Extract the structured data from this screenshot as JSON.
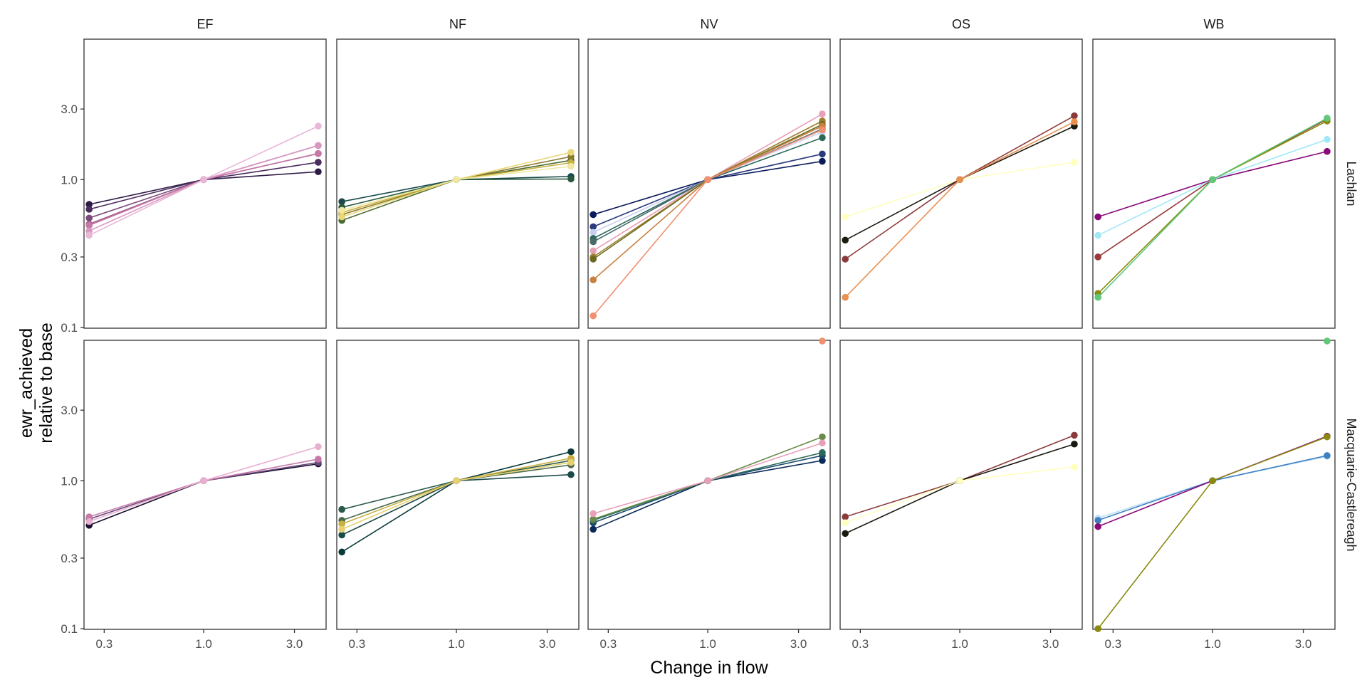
{
  "chart_data": {
    "type": "line",
    "log_x": true,
    "log_y": true,
    "xlabel": "Change in flow",
    "ylabel": [
      "ewr_achieved",
      "relative to base"
    ],
    "x": [
      0.25,
      1,
      4
    ],
    "xlim": [
      0.235,
      4.4
    ],
    "ylim": [
      0.099,
      8.9
    ],
    "xticks": [
      0.3,
      {
        "value": 1,
        "label": "1.0"
      },
      {
        "value": 3,
        "label": "3.0"
      }
    ],
    "yticks": [
      0.1,
      0.3,
      {
        "value": 1,
        "label": "1.0"
      },
      {
        "value": 3,
        "label": "3.0"
      }
    ],
    "columns": [
      "EF",
      "NF",
      "NV",
      "OS",
      "WB"
    ],
    "rows": [
      {
        "name": "Lachlan",
        "panels": [
          [
            {
              "color": "#2d1a45",
              "values": [
                0.68,
                1,
                1.13
              ]
            },
            {
              "color": "#4a2c5e",
              "values": [
                0.63,
                1,
                1.31
              ]
            },
            {
              "color": "#7a4a7a",
              "values": [
                0.55,
                1,
                1.5
              ]
            },
            {
              "color": "#a05a8a",
              "values": [
                0.5,
                1,
                1.7
              ]
            },
            {
              "color": "#c878a8",
              "values": [
                0.49,
                1,
                1.5
              ]
            },
            {
              "color": "#d898c0",
              "values": [
                0.45,
                1,
                1.7
              ]
            },
            {
              "color": "#e8b8d8",
              "values": [
                0.42,
                1,
                2.3
              ]
            }
          ],
          [
            {
              "color": "#1a4a4a",
              "values": [
                0.71,
                1,
                1.05
              ]
            },
            {
              "color": "#2a5a40",
              "values": [
                0.65,
                1,
                1.01
              ]
            },
            {
              "color": "#4a6a30",
              "values": [
                0.53,
                1,
                1.35
              ]
            },
            {
              "color": "#8a7a30",
              "values": [
                0.58,
                1,
                1.43
              ]
            },
            {
              "color": "#c8b040",
              "values": [
                0.6,
                1,
                1.3
              ]
            },
            {
              "color": "#e8d878",
              "values": [
                0.56,
                1,
                1.53
              ]
            },
            {
              "color": "#f0e8a0",
              "values": [
                0.62,
                1,
                1.23
              ]
            }
          ],
          [
            {
              "color": "#0a1a5a",
              "values": [
                0.58,
                1,
                1.33
              ]
            },
            {
              "color": "#2a3a7a",
              "values": [
                0.48,
                1,
                1.49
              ]
            },
            {
              "color": "#c8d0f0",
              "values": [
                0.44,
                1,
                2.1
              ]
            },
            {
              "color": "#2a6a5a",
              "values": [
                0.4,
                1,
                1.92
              ]
            },
            {
              "color": "#4a6a6a",
              "values": [
                0.38,
                1,
                2.2
              ]
            },
            {
              "color": "#e8a0b8",
              "values": [
                0.33,
                1,
                2.78
              ]
            },
            {
              "color": "#a08030",
              "values": [
                0.3,
                1,
                2.49
              ]
            },
            {
              "color": "#6a6a20",
              "values": [
                0.29,
                1,
                2.36
              ]
            },
            {
              "color": "#c88040",
              "values": [
                0.21,
                1,
                2.3
              ]
            },
            {
              "color": "#f09070",
              "values": [
                0.12,
                1,
                2.17
              ]
            }
          ],
          [
            {
              "color": "#ffffc0",
              "values": [
                0.56,
                1,
                1.31
              ]
            },
            {
              "color": "#1a1a10",
              "values": [
                0.39,
                1,
                2.3
              ]
            },
            {
              "color": "#8a3a3a",
              "values": [
                0.29,
                1,
                2.7
              ]
            },
            {
              "color": "#e89050",
              "values": [
                0.16,
                1,
                2.46
              ]
            }
          ],
          [
            {
              "color": "#8a0a7a",
              "values": [
                0.56,
                1,
                1.55
              ]
            },
            {
              "color": "#a0e8f8",
              "values": [
                0.42,
                1,
                1.87
              ]
            },
            {
              "color": "#9a3a3a",
              "values": [
                0.3,
                1,
                2.56
              ]
            },
            {
              "color": "#8a8a10",
              "values": [
                0.17,
                1,
                2.49
              ]
            },
            {
              "color": "#60c878",
              "values": [
                0.16,
                1,
                2.6
              ]
            }
          ]
        ]
      },
      {
        "name": "Macquarie-Castlereagh",
        "panels": [
          [
            {
              "color": "#1a1030",
              "values": [
                0.5,
                1,
                1.3
              ]
            },
            {
              "color": "#6a4a7a",
              "values": [
                0.55,
                1,
                1.33
              ]
            },
            {
              "color": "#c878a8",
              "values": [
                0.57,
                1,
                1.4
              ]
            },
            {
              "color": "#e8b0d0",
              "values": [
                0.53,
                1,
                1.7
              ]
            }
          ],
          [
            {
              "color": "#0a3a3a",
              "values": [
                0.33,
                1,
                1.57
              ]
            },
            {
              "color": "#1a4a4a",
              "values": [
                0.43,
                1,
                1.1
              ]
            },
            {
              "color": "#2a5a4a",
              "values": [
                0.64,
                1,
                1.37
              ]
            },
            {
              "color": "#4a6a4a",
              "values": [
                0.54,
                1,
                1.28
              ]
            },
            {
              "color": "#c8b040",
              "values": [
                0.51,
                1,
                1.42
              ]
            },
            {
              "color": "#e8d070",
              "values": [
                0.47,
                1,
                1.33
              ]
            }
          ],
          [
            {
              "color": "#0a2a5a",
              "values": [
                0.47,
                1,
                1.37
              ]
            },
            {
              "color": "#1a4a6a",
              "values": [
                0.52,
                1,
                1.48
              ]
            },
            {
              "color": "#2a6a5a",
              "values": [
                0.54,
                1,
                1.55
              ]
            },
            {
              "color": "#6a8a4a",
              "values": [
                0.55,
                1,
                1.98
              ]
            },
            {
              "color": "#e8a0b8",
              "values": [
                0.6,
                1,
                1.8
              ]
            },
            {
              "color": "#f09070",
              "values": [
                null,
                null,
                8.8
              ]
            }
          ],
          [
            {
              "color": "#8a3a3a",
              "values": [
                0.57,
                1,
                2.03
              ]
            },
            {
              "color": "#1a1a10",
              "values": [
                0.44,
                1,
                1.77
              ]
            },
            {
              "color": "#ffffc0",
              "values": [
                0.52,
                1,
                1.24
              ]
            }
          ],
          [
            {
              "color": "#c0e0f8",
              "values": [
                0.56,
                1,
                1.46
              ]
            },
            {
              "color": "#4080c0",
              "values": [
                0.54,
                1,
                1.48
              ]
            },
            {
              "color": "#8a0a7a",
              "values": [
                0.49,
                1,
                2.0
              ]
            },
            {
              "color": "#8a8a10",
              "values": [
                0.1,
                1,
                1.98
              ]
            },
            {
              "color": "#60c878",
              "values": [
                null,
                null,
                8.8
              ]
            }
          ]
        ]
      }
    ]
  }
}
